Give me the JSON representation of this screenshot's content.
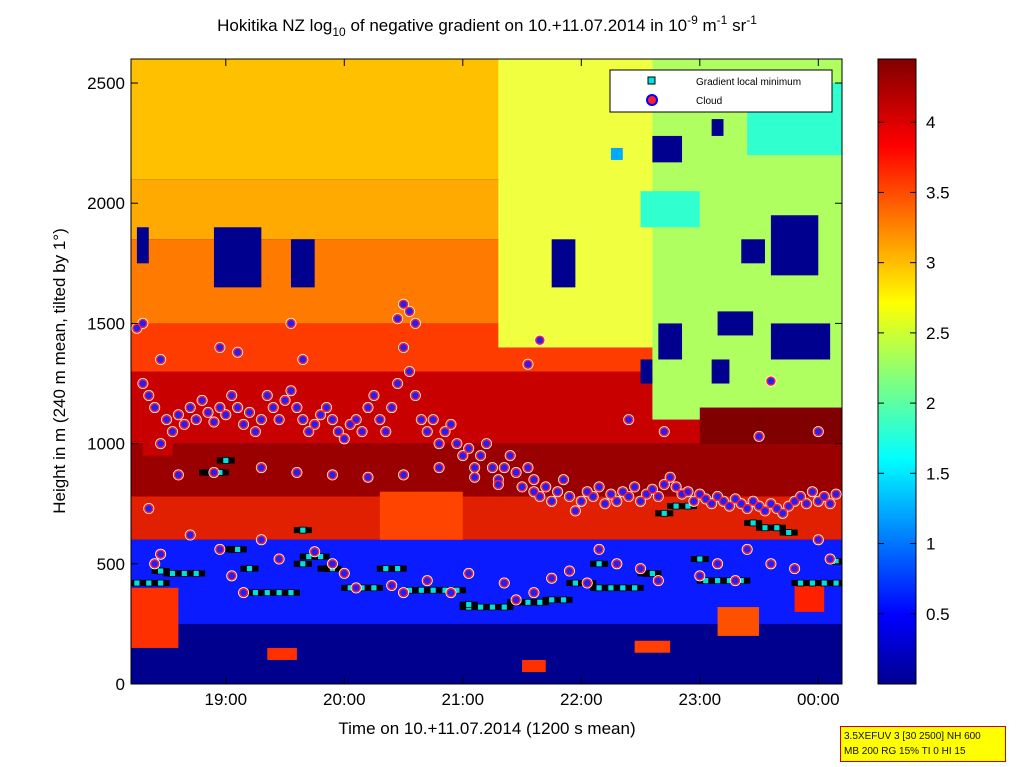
{
  "chart_data": {
    "type": "heatmap",
    "title_main": "Hokitika NZ log",
    "title_sub": "10",
    "title_mid": " of negative gradient on 10.+11.07.2014 in 10",
    "title_exp1": "-9",
    "title_unit1": " m",
    "title_exp2": "-1",
    "title_unit2": " sr",
    "title_exp3": "-1",
    "xlabel": "Time on 10.+11.07.2014 (1200 s mean)",
    "ylabel": "Height in m (240 m mean, tilted by 1°)",
    "xlim_hours": [
      18.2,
      24.2
    ],
    "ylim": [
      0,
      2600
    ],
    "x_ticks": [
      {
        "hour": 19,
        "label": "19:00"
      },
      {
        "hour": 20,
        "label": "20:00"
      },
      {
        "hour": 21,
        "label": "21:00"
      },
      {
        "hour": 22,
        "label": "22:00"
      },
      {
        "hour": 23,
        "label": "23:00"
      },
      {
        "hour": 24,
        "label": "00:00"
      }
    ],
    "y_ticks": [
      {
        "value": 0,
        "label": "0"
      },
      {
        "value": 500,
        "label": "500"
      },
      {
        "value": 1000,
        "label": "1000"
      },
      {
        "value": 1500,
        "label": "1500"
      },
      {
        "value": 2000,
        "label": "2000"
      },
      {
        "value": 2500,
        "label": "2500"
      }
    ],
    "colorbar": {
      "colormap": "jet",
      "range": [
        0,
        4.45
      ],
      "ticks": [
        {
          "value": 0.5,
          "label": "0.5"
        },
        {
          "value": 1,
          "label": "1"
        },
        {
          "value": 1.5,
          "label": "1.5"
        },
        {
          "value": 2,
          "label": "2"
        },
        {
          "value": 2.5,
          "label": "2.5"
        },
        {
          "value": 3,
          "label": "3"
        },
        {
          "value": 3.5,
          "label": "3.5"
        },
        {
          "value": 4,
          "label": "4"
        }
      ]
    },
    "legend": {
      "placement": "top-right",
      "entries": [
        {
          "name": "Gradient local minimum",
          "marker": "square",
          "color": "#00e0e0"
        },
        {
          "name": "Cloud",
          "marker": "circle",
          "color": "#ff2020",
          "edge": "#0000ff"
        }
      ]
    },
    "series": [
      {
        "name": "Cloud",
        "points": [
          [
            18.25,
            1480
          ],
          [
            18.3,
            1250
          ],
          [
            18.35,
            1200
          ],
          [
            18.4,
            1150
          ],
          [
            18.45,
            1000
          ],
          [
            18.5,
            1100
          ],
          [
            18.55,
            1050
          ],
          [
            18.6,
            1120
          ],
          [
            18.65,
            1080
          ],
          [
            18.7,
            1150
          ],
          [
            18.75,
            1100
          ],
          [
            18.8,
            1180
          ],
          [
            18.85,
            1130
          ],
          [
            18.9,
            1090
          ],
          [
            18.95,
            1150
          ],
          [
            19.0,
            1120
          ],
          [
            19.05,
            1200
          ],
          [
            19.1,
            1150
          ],
          [
            19.15,
            1080
          ],
          [
            19.2,
            1130
          ],
          [
            19.25,
            1050
          ],
          [
            19.3,
            1100
          ],
          [
            19.35,
            1200
          ],
          [
            19.4,
            1150
          ],
          [
            19.45,
            1100
          ],
          [
            19.5,
            1180
          ],
          [
            19.55,
            1220
          ],
          [
            19.6,
            1150
          ],
          [
            19.65,
            1100
          ],
          [
            19.7,
            1050
          ],
          [
            19.75,
            1080
          ],
          [
            19.8,
            1120
          ],
          [
            19.85,
            1150
          ],
          [
            19.9,
            1100
          ],
          [
            19.95,
            1050
          ],
          [
            20.0,
            1020
          ],
          [
            20.05,
            1080
          ],
          [
            20.1,
            1100
          ],
          [
            20.15,
            1050
          ],
          [
            20.2,
            1150
          ],
          [
            20.25,
            1200
          ],
          [
            20.3,
            1100
          ],
          [
            20.35,
            1050
          ],
          [
            20.4,
            1150
          ],
          [
            20.45,
            1250
          ],
          [
            20.5,
            1400
          ],
          [
            20.55,
            1300
          ],
          [
            20.6,
            1200
          ],
          [
            20.65,
            1100
          ],
          [
            20.7,
            1050
          ],
          [
            20.75,
            1100
          ],
          [
            20.8,
            1000
          ],
          [
            20.85,
            1050
          ],
          [
            20.9,
            1080
          ],
          [
            20.95,
            1000
          ],
          [
            21.0,
            950
          ],
          [
            21.05,
            980
          ],
          [
            21.1,
            900
          ],
          [
            21.15,
            950
          ],
          [
            21.2,
            1000
          ],
          [
            21.25,
            900
          ],
          [
            21.3,
            850
          ],
          [
            21.35,
            900
          ],
          [
            21.4,
            950
          ],
          [
            21.45,
            880
          ],
          [
            21.5,
            820
          ],
          [
            21.55,
            900
          ],
          [
            21.6,
            850
          ],
          [
            21.65,
            780
          ],
          [
            21.7,
            820
          ],
          [
            21.75,
            760
          ],
          [
            21.8,
            800
          ],
          [
            21.85,
            850
          ],
          [
            21.9,
            780
          ],
          [
            21.95,
            720
          ],
          [
            22.0,
            760
          ],
          [
            22.05,
            800
          ],
          [
            22.1,
            780
          ],
          [
            22.15,
            820
          ],
          [
            22.2,
            750
          ],
          [
            22.25,
            790
          ],
          [
            22.3,
            760
          ],
          [
            22.35,
            800
          ],
          [
            22.4,
            780
          ],
          [
            22.45,
            820
          ],
          [
            22.5,
            760
          ],
          [
            22.55,
            790
          ],
          [
            22.6,
            810
          ],
          [
            22.65,
            780
          ],
          [
            22.7,
            830
          ],
          [
            22.75,
            860
          ],
          [
            22.8,
            820
          ],
          [
            22.85,
            790
          ],
          [
            22.9,
            800
          ],
          [
            22.95,
            760
          ],
          [
            23.0,
            790
          ],
          [
            23.05,
            770
          ],
          [
            23.1,
            750
          ],
          [
            23.15,
            780
          ],
          [
            23.2,
            760
          ],
          [
            23.25,
            740
          ],
          [
            23.3,
            770
          ],
          [
            23.35,
            750
          ],
          [
            23.4,
            730
          ],
          [
            23.45,
            760
          ],
          [
            23.5,
            740
          ],
          [
            23.55,
            720
          ],
          [
            23.6,
            750
          ],
          [
            23.65,
            730
          ],
          [
            23.7,
            710
          ],
          [
            23.75,
            740
          ],
          [
            23.8,
            760
          ],
          [
            23.85,
            780
          ],
          [
            23.9,
            750
          ],
          [
            23.95,
            800
          ],
          [
            24.0,
            760
          ],
          [
            24.05,
            780
          ],
          [
            24.1,
            750
          ],
          [
            24.15,
            790
          ],
          [
            18.95,
            1400
          ],
          [
            19.1,
            1380
          ],
          [
            19.55,
            1500
          ],
          [
            19.65,
            1350
          ],
          [
            20.45,
            1520
          ],
          [
            20.5,
            1580
          ],
          [
            20.55,
            1550
          ],
          [
            20.6,
            1500
          ],
          [
            21.65,
            1430
          ],
          [
            21.55,
            1330
          ],
          [
            23.6,
            1260
          ],
          [
            23.5,
            1030
          ],
          [
            24.0,
            1050
          ],
          [
            22.7,
            1050
          ],
          [
            22.4,
            1100
          ],
          [
            18.3,
            1500
          ],
          [
            18.45,
            1350
          ],
          [
            18.35,
            730
          ],
          [
            18.6,
            870
          ],
          [
            18.9,
            880
          ],
          [
            19.3,
            900
          ],
          [
            19.6,
            880
          ],
          [
            19.9,
            870
          ],
          [
            20.2,
            860
          ],
          [
            20.5,
            870
          ],
          [
            20.8,
            900
          ],
          [
            21.1,
            860
          ],
          [
            21.3,
            830
          ],
          [
            21.6,
            800
          ],
          [
            18.45,
            540
          ],
          [
            18.4,
            500
          ],
          [
            18.95,
            560
          ],
          [
            19.05,
            450
          ],
          [
            19.15,
            380
          ],
          [
            19.3,
            600
          ],
          [
            19.45,
            520
          ],
          [
            19.75,
            550
          ],
          [
            19.9,
            500
          ],
          [
            20.0,
            460
          ],
          [
            20.1,
            400
          ],
          [
            20.4,
            410
          ],
          [
            20.5,
            380
          ],
          [
            20.7,
            430
          ],
          [
            20.9,
            380
          ],
          [
            21.05,
            460
          ],
          [
            21.35,
            420
          ],
          [
            21.45,
            350
          ],
          [
            21.6,
            380
          ],
          [
            21.75,
            440
          ],
          [
            21.9,
            470
          ],
          [
            22.05,
            420
          ],
          [
            22.15,
            560
          ],
          [
            22.3,
            500
          ],
          [
            22.5,
            480
          ],
          [
            22.65,
            430
          ],
          [
            23.0,
            450
          ],
          [
            23.15,
            500
          ],
          [
            23.4,
            560
          ],
          [
            23.6,
            500
          ],
          [
            23.8,
            480
          ],
          [
            24.0,
            600
          ],
          [
            24.1,
            520
          ],
          [
            23.3,
            430
          ],
          [
            18.7,
            620
          ]
        ]
      },
      {
        "name": "Gradient local minimum",
        "points": [
          [
            18.25,
            420
          ],
          [
            18.35,
            420
          ],
          [
            18.45,
            420
          ],
          [
            18.55,
            460
          ],
          [
            18.65,
            460
          ],
          [
            18.75,
            460
          ],
          [
            18.85,
            880
          ],
          [
            18.9,
            880
          ],
          [
            18.95,
            880
          ],
          [
            19.0,
            930
          ],
          [
            19.05,
            560
          ],
          [
            19.1,
            560
          ],
          [
            19.2,
            480
          ],
          [
            19.25,
            380
          ],
          [
            19.35,
            380
          ],
          [
            19.45,
            380
          ],
          [
            19.55,
            380
          ],
          [
            19.65,
            500
          ],
          [
            19.7,
            530
          ],
          [
            19.8,
            530
          ],
          [
            19.85,
            480
          ],
          [
            19.9,
            480
          ],
          [
            20.05,
            400
          ],
          [
            20.15,
            400
          ],
          [
            20.25,
            400
          ],
          [
            20.35,
            480
          ],
          [
            20.45,
            480
          ],
          [
            20.55,
            390
          ],
          [
            20.65,
            390
          ],
          [
            20.75,
            390
          ],
          [
            20.85,
            390
          ],
          [
            20.95,
            390
          ],
          [
            21.05,
            320
          ],
          [
            21.15,
            320
          ],
          [
            21.25,
            320
          ],
          [
            21.35,
            320
          ],
          [
            21.45,
            340
          ],
          [
            21.55,
            340
          ],
          [
            21.65,
            340
          ],
          [
            21.75,
            350
          ],
          [
            21.85,
            350
          ],
          [
            21.95,
            420
          ],
          [
            22.05,
            420
          ],
          [
            22.15,
            400
          ],
          [
            22.25,
            400
          ],
          [
            22.35,
            400
          ],
          [
            22.45,
            400
          ],
          [
            22.55,
            460
          ],
          [
            22.6,
            460
          ],
          [
            22.7,
            710
          ],
          [
            22.8,
            740
          ],
          [
            22.9,
            740
          ],
          [
            23.05,
            430
          ],
          [
            23.15,
            430
          ],
          [
            23.25,
            430
          ],
          [
            23.35,
            430
          ],
          [
            23.45,
            670
          ],
          [
            23.55,
            650
          ],
          [
            23.65,
            650
          ],
          [
            23.75,
            630
          ],
          [
            23.85,
            420
          ],
          [
            23.95,
            420
          ],
          [
            24.05,
            420
          ],
          [
            24.15,
            420
          ],
          [
            18.45,
            470
          ],
          [
            19.65,
            640
          ],
          [
            22.15,
            500
          ],
          [
            23.0,
            520
          ],
          [
            21.05,
            330
          ],
          [
            24.15,
            510
          ]
        ]
      }
    ]
  },
  "info_box": {
    "line1": "3.5XEFUV 3 [30 2500] NH 600",
    "line2": "MB 200 RG 15% TI 0 HI 15"
  }
}
